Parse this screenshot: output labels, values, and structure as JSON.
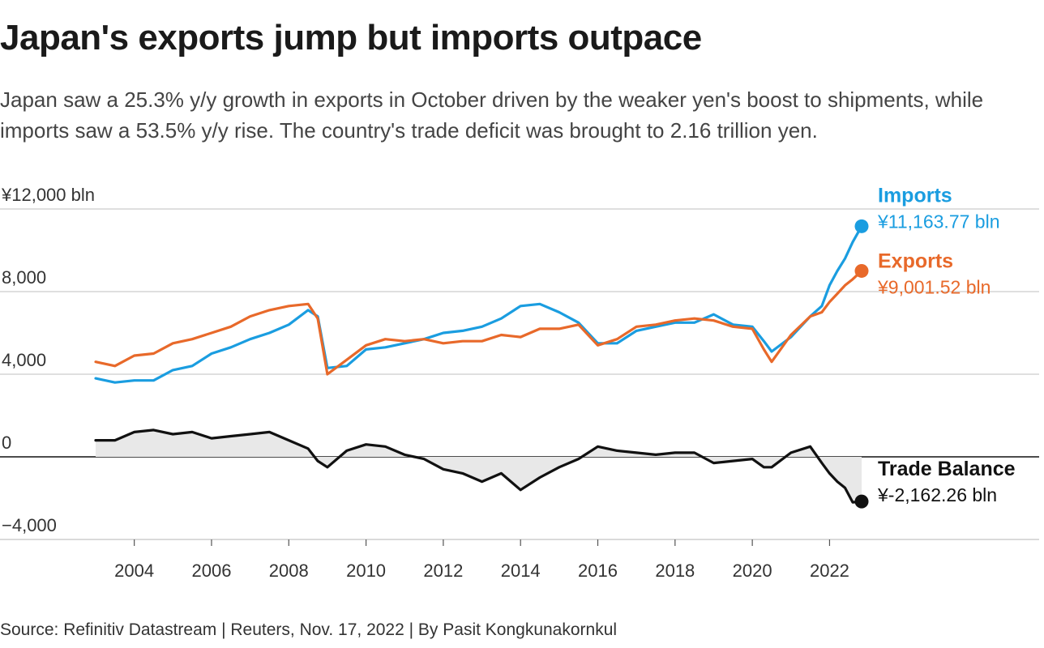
{
  "title": "Japan's exports jump but imports outpace",
  "subtitle": "Japan saw a 25.3% y/y growth in exports in October driven by the weaker yen's boost to shipments, while imports saw a 53.5% y/y rise. The country's trade deficit was brought to 2.16 trillion yen.",
  "source": "Source: Refinitiv Datastream | Reuters, Nov. 17, 2022 | By Pasit Kongkunakornkul",
  "colors": {
    "imports": "#1a9de0",
    "exports": "#e8692a",
    "balance": "#111111",
    "grid": "#cccccc",
    "fill": "#e8e8e8"
  },
  "chart_data": {
    "type": "line",
    "title": "Japan's exports jump but imports outpace",
    "xlabel": "",
    "ylabel": "¥ bln",
    "ylim": [
      -4000,
      12000
    ],
    "xlim": [
      2003.0,
      2022.83
    ],
    "y_ticks": [
      12000,
      8000,
      4000,
      0,
      -4000
    ],
    "y_tick_labels": [
      "¥12,000 bln",
      "8,000",
      "4,000",
      "0",
      "−4,000"
    ],
    "x_ticks": [
      2004,
      2006,
      2008,
      2010,
      2012,
      2014,
      2016,
      2018,
      2020,
      2022
    ],
    "x_tick_labels": [
      "2004",
      "2006",
      "2008",
      "2010",
      "2012",
      "2014",
      "2016",
      "2018",
      "2020",
      "2022"
    ],
    "grid": true,
    "series": [
      {
        "name": "Imports",
        "end_label": "¥11,163.77 bln",
        "x": [
          2003.0,
          2003.5,
          2004.0,
          2004.5,
          2005.0,
          2005.5,
          2006.0,
          2006.5,
          2007.0,
          2007.5,
          2008.0,
          2008.5,
          2008.75,
          2009.0,
          2009.5,
          2010.0,
          2010.5,
          2011.0,
          2011.5,
          2012.0,
          2012.5,
          2013.0,
          2013.5,
          2014.0,
          2014.5,
          2015.0,
          2015.5,
          2016.0,
          2016.5,
          2017.0,
          2017.5,
          2018.0,
          2018.5,
          2019.0,
          2019.5,
          2020.0,
          2020.3,
          2020.5,
          2021.0,
          2021.5,
          2021.8,
          2022.0,
          2022.2,
          2022.4,
          2022.6,
          2022.83
        ],
        "values": [
          3800,
          3600,
          3700,
          3700,
          4200,
          4400,
          5000,
          5300,
          5700,
          6000,
          6400,
          7100,
          6800,
          4300,
          4400,
          5200,
          5300,
          5500,
          5700,
          6000,
          6100,
          6300,
          6700,
          7300,
          7400,
          7000,
          6500,
          5500,
          5500,
          6100,
          6300,
          6500,
          6500,
          6900,
          6400,
          6300,
          5600,
          5100,
          5800,
          6800,
          7300,
          8300,
          9000,
          9600,
          10400,
          11164
        ]
      },
      {
        "name": "Exports",
        "end_label": "¥9,001.52 bln",
        "x": [
          2003.0,
          2003.5,
          2004.0,
          2004.5,
          2005.0,
          2005.5,
          2006.0,
          2006.5,
          2007.0,
          2007.5,
          2008.0,
          2008.5,
          2008.75,
          2009.0,
          2009.5,
          2010.0,
          2010.5,
          2011.0,
          2011.5,
          2012.0,
          2012.5,
          2013.0,
          2013.5,
          2014.0,
          2014.5,
          2015.0,
          2015.5,
          2016.0,
          2016.5,
          2017.0,
          2017.5,
          2018.0,
          2018.5,
          2019.0,
          2019.5,
          2020.0,
          2020.3,
          2020.5,
          2021.0,
          2021.5,
          2021.8,
          2022.0,
          2022.2,
          2022.4,
          2022.6,
          2022.83
        ],
        "values": [
          4600,
          4400,
          4900,
          5000,
          5500,
          5700,
          6000,
          6300,
          6800,
          7100,
          7300,
          7400,
          6700,
          4000,
          4700,
          5400,
          5700,
          5600,
          5700,
          5500,
          5600,
          5600,
          5900,
          5800,
          6200,
          6200,
          6400,
          5400,
          5700,
          6300,
          6400,
          6600,
          6700,
          6600,
          6300,
          6200,
          5200,
          4600,
          5900,
          6800,
          7000,
          7500,
          7900,
          8300,
          8600,
          9002
        ]
      },
      {
        "name": "Trade Balance",
        "end_label": "¥-2,162.26 bln",
        "x": [
          2003.0,
          2003.5,
          2004.0,
          2004.5,
          2005.0,
          2005.5,
          2006.0,
          2006.5,
          2007.0,
          2007.5,
          2008.0,
          2008.5,
          2008.75,
          2009.0,
          2009.5,
          2010.0,
          2010.5,
          2011.0,
          2011.5,
          2012.0,
          2012.5,
          2013.0,
          2013.5,
          2014.0,
          2014.5,
          2015.0,
          2015.5,
          2016.0,
          2016.5,
          2017.0,
          2017.5,
          2018.0,
          2018.5,
          2019.0,
          2019.5,
          2020.0,
          2020.3,
          2020.5,
          2021.0,
          2021.5,
          2021.8,
          2022.0,
          2022.2,
          2022.4,
          2022.6,
          2022.83
        ],
        "values": [
          800,
          800,
          1200,
          1300,
          1100,
          1200,
          900,
          1000,
          1100,
          1200,
          800,
          400,
          -200,
          -500,
          300,
          600,
          500,
          100,
          -100,
          -600,
          -800,
          -1200,
          -800,
          -1600,
          -1000,
          -500,
          -100,
          500,
          300,
          200,
          100,
          200,
          200,
          -300,
          -200,
          -100,
          -500,
          -500,
          200,
          500,
          -300,
          -800,
          -1200,
          -1500,
          -2200,
          -2162
        ]
      }
    ]
  }
}
